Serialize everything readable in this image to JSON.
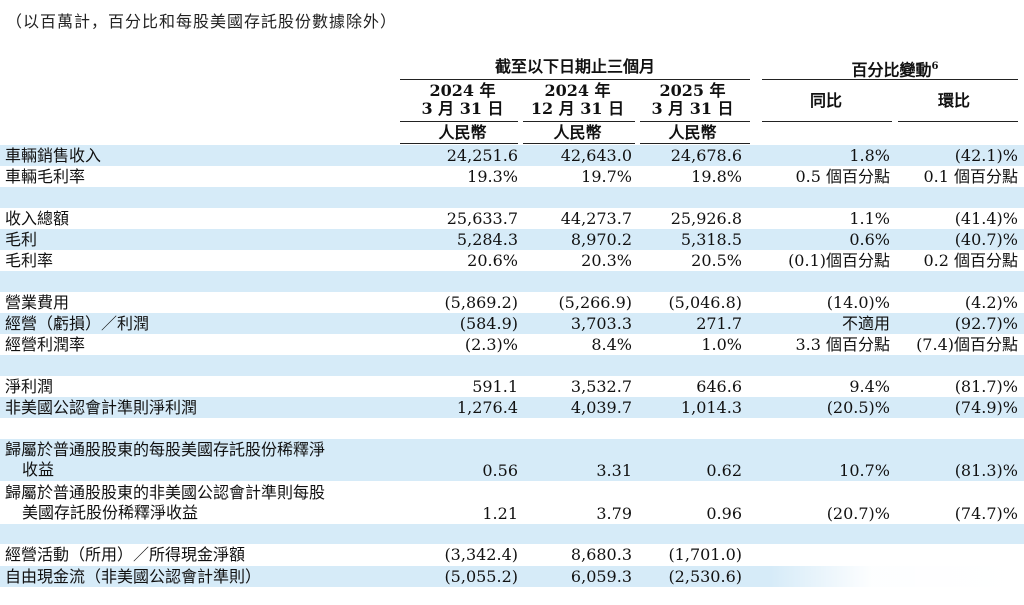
{
  "note": "（以百萬計，百分比和每股美國存託股份數據除外）",
  "header": {
    "group_period": "截至以下日期止三個月",
    "group_change": "百分比變動",
    "group_change_sup": "6",
    "col1": [
      "2024 年",
      "3 月 31 日"
    ],
    "col2": [
      "2024 年",
      "12 月 31 日"
    ],
    "col3": [
      "2025 年",
      "3 月 31 日"
    ],
    "yoy": "同比",
    "qoq": "環比",
    "currency": "人民幣"
  },
  "rows": [
    {
      "label": "車輛銷售收入",
      "v": [
        "24,251.6",
        "42,643.0",
        "24,678.6",
        "1.8%",
        "(42.1)%"
      ]
    },
    {
      "label": "車輛毛利率",
      "v": [
        "19.3%",
        "19.7%",
        "19.8%",
        "0.5 個百分點",
        "0.1 個百分點"
      ]
    },
    {
      "label": "收入總額",
      "v": [
        "25,633.7",
        "44,273.7",
        "25,926.8",
        "1.1%",
        "(41.4)%"
      ]
    },
    {
      "label": "毛利",
      "v": [
        "5,284.3",
        "8,970.2",
        "5,318.5",
        "0.6%",
        "(40.7)%"
      ]
    },
    {
      "label": "毛利率",
      "v": [
        "20.6%",
        "20.3%",
        "20.5%",
        "(0.1)個百分點",
        "0.2 個百分點"
      ]
    },
    {
      "label": "營業費用",
      "v": [
        "(5,869.2)",
        "(5,266.9)",
        "(5,046.8)",
        "(14.0)%",
        "(4.2)%"
      ]
    },
    {
      "label": "經營（虧損）／利潤",
      "v": [
        "(584.9)",
        "3,703.3",
        "271.7",
        "不適用",
        "(92.7)%"
      ]
    },
    {
      "label": "經營利潤率",
      "v": [
        "(2.3)%",
        "8.4%",
        "1.0%",
        "3.3 個百分點",
        "(7.4)個百分點"
      ]
    },
    {
      "label": "淨利潤",
      "v": [
        "591.1",
        "3,532.7",
        "646.6",
        "9.4%",
        "(81.7)%"
      ]
    },
    {
      "label": "非美國公認會計準則淨利潤",
      "v": [
        "1,276.4",
        "4,039.7",
        "1,014.3",
        "(20.5)%",
        "(74.9)%"
      ]
    },
    {
      "label": "歸屬於普通股股東的每股美國存託股份稀釋淨收益",
      "label_a": "歸屬於普通股股東的每股美國存託股份稀釋淨",
      "label_b": "收益",
      "v": [
        "0.56",
        "3.31",
        "0.62",
        "10.7%",
        "(81.3)%"
      ]
    },
    {
      "label_a": "歸屬於普通股股東的非美國公認會計準則每股",
      "label_b": "美國存託股份稀釋淨收益",
      "v": [
        "1.21",
        "3.79",
        "0.96",
        "(20.7)%",
        "(74.7)%"
      ]
    },
    {
      "label": "經營活動（所用）／所得現金淨額",
      "v": [
        "(3,342.4)",
        "8,680.3",
        "(1,701.0)"
      ]
    },
    {
      "label": "自由現金流（非美國公認會計準則）",
      "v": [
        "(5,055.2)",
        "6,059.3",
        "(2,530.6)"
      ]
    }
  ]
}
